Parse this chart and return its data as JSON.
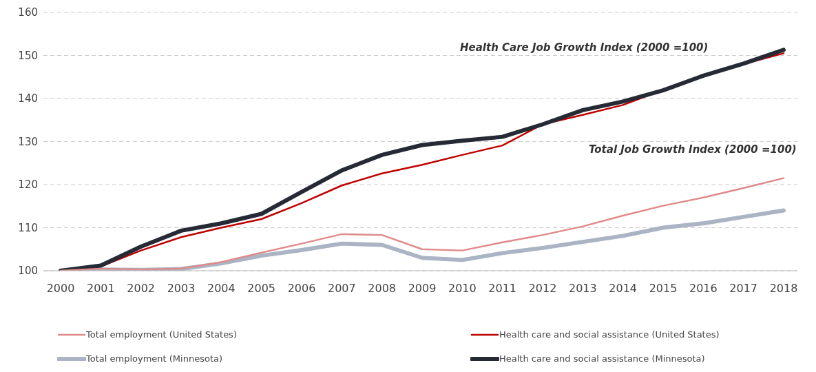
{
  "chart_data": {
    "type": "line",
    "categories": [
      "2000",
      "2001",
      "2002",
      "2003",
      "2004",
      "2005",
      "2006",
      "2007",
      "2008",
      "2009",
      "2010",
      "2011",
      "2012",
      "2013",
      "2014",
      "2015",
      "2016",
      "2017",
      "2018"
    ],
    "series": [
      {
        "name": "Total employment (United States)",
        "color": "#e08a8a",
        "values": [
          100,
          100.5,
          100.3,
          100.5,
          102,
          104.2,
          106.3,
          108.5,
          108.3,
          105,
          104.7,
          106.6,
          108.3,
          110.3,
          112.8,
          115.1,
          117,
          119.2,
          121.5
        ]
      },
      {
        "name": "Health care and social assistance (United States)",
        "color": "#c00000",
        "values": [
          100,
          101,
          104.7,
          107.8,
          110,
          112,
          115.7,
          119.8,
          122.6,
          124.6,
          126.9,
          129.1,
          134,
          136.2,
          138.5,
          142,
          145.3,
          148,
          150.5
        ]
      },
      {
        "name": "Total employment (Minnesota)",
        "color": "#aab4c4",
        "values": [
          100,
          100.3,
          100.2,
          100.4,
          101.7,
          103.5,
          104.8,
          106.3,
          106,
          103,
          102.5,
          104.1,
          105.3,
          106.7,
          108.1,
          110,
          111,
          112.5,
          114
        ]
      },
      {
        "name": "Health care and social assistance (Minnesota)",
        "color": "#262a35",
        "values": [
          100,
          101.2,
          105.6,
          109.3,
          111,
          113.2,
          118.3,
          123.3,
          126.9,
          129.2,
          130.2,
          131.1,
          134,
          137.3,
          139.3,
          141.9,
          145.3,
          148.1,
          151.3
        ]
      }
    ],
    "ylim": [
      100,
      160
    ],
    "yticks": [
      100,
      110,
      120,
      130,
      140,
      150,
      160
    ],
    "grid": "y",
    "legend": "bottom",
    "marker": "none",
    "line_style": "solid",
    "annotations": [
      "Health Care Job Growth Index (2000 =100)",
      "Total Job Growth Index (2000 =100)"
    ]
  }
}
